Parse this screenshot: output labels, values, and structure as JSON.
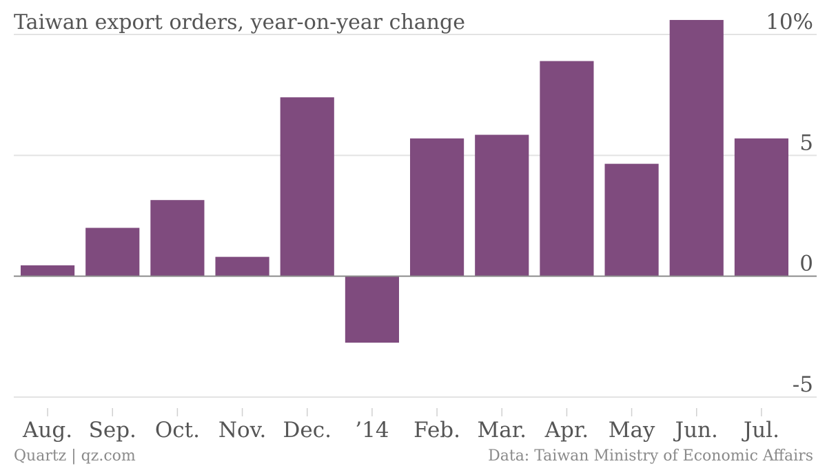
{
  "chart_data": {
    "type": "bar",
    "title": "Taiwan export orders, year-on-year change",
    "categories": [
      "Aug.",
      "Sep.",
      "Oct.",
      "Nov.",
      "Dec.",
      "’14",
      "Feb.",
      "Mar.",
      "Apr.",
      "May",
      "Jun.",
      "Jul."
    ],
    "values": [
      0.45,
      2.0,
      3.15,
      0.8,
      7.4,
      -2.75,
      5.7,
      5.85,
      8.9,
      4.65,
      10.6,
      5.7
    ],
    "ylim": [
      -5,
      10
    ],
    "yticks": [
      -5,
      0,
      5,
      10
    ],
    "ytick_labels": [
      "-5",
      "0",
      "5",
      "10%"
    ],
    "y_axis_side": "right",
    "grid": true,
    "bar_color": "#7f4b7e",
    "xlabel": "",
    "ylabel": ""
  },
  "footer": {
    "source_left": "Quartz | qz.com",
    "source_right": "Data: Taiwan Ministry of Economic Affairs"
  }
}
